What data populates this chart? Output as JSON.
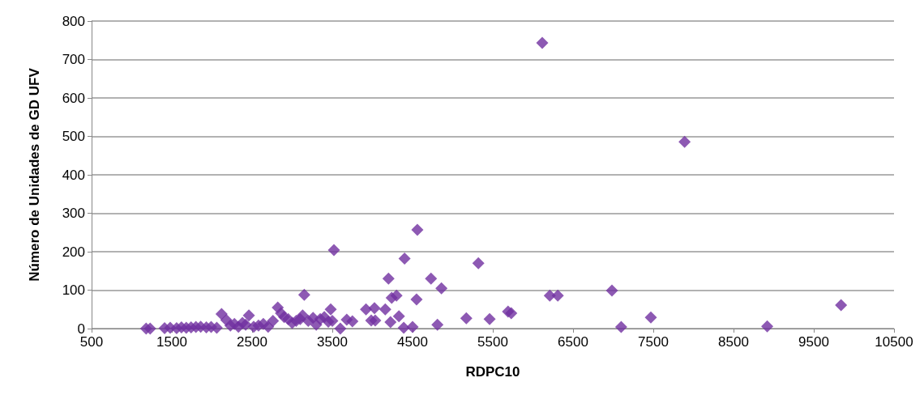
{
  "chart_data": {
    "type": "scatter",
    "xlabel": "RDPC10",
    "ylabel": "Número de Unidades de GD UFV",
    "color": "#7030a0",
    "marker": "diamond",
    "grid": "y",
    "xlim": [
      500,
      10500
    ],
    "xticks": [
      500,
      1500,
      2500,
      3500,
      4500,
      5500,
      6500,
      7500,
      8500,
      9500,
      10500
    ],
    "ylim": [
      0,
      800
    ],
    "yticks": [
      0,
      100,
      200,
      300,
      400,
      500,
      600,
      700,
      800
    ],
    "x": [
      1180,
      1230,
      1410,
      1480,
      1560,
      1620,
      1680,
      1740,
      1800,
      1860,
      1930,
      1990,
      2060,
      2120,
      2180,
      2230,
      2280,
      2330,
      2380,
      2420,
      2460,
      2520,
      2580,
      2640,
      2700,
      2760,
      2820,
      2860,
      2900,
      2950,
      3000,
      3050,
      3100,
      3130,
      3150,
      3200,
      3260,
      3300,
      3350,
      3400,
      3450,
      3480,
      3500,
      3520,
      3600,
      3680,
      3750,
      3920,
      3985,
      4025,
      4035,
      4160,
      4200,
      4225,
      4240,
      4300,
      4330,
      4390,
      4400,
      4500,
      4550,
      4560,
      4730,
      4810,
      4860,
      5170,
      5320,
      5460,
      5690,
      5730,
      6116,
      6210,
      6310,
      6985,
      7100,
      7470,
      7890,
      8920,
      9840
    ],
    "values": [
      0,
      0,
      1,
      2,
      1,
      3,
      2,
      3,
      4,
      5,
      3,
      4,
      2,
      38,
      22,
      8,
      12,
      5,
      15,
      10,
      34,
      5,
      8,
      12,
      5,
      20,
      55,
      40,
      30,
      25,
      15,
      20,
      25,
      34,
      88,
      20,
      28,
      10,
      25,
      30,
      18,
      50,
      20,
      204,
      0,
      23,
      19,
      50,
      21,
      53,
      21,
      50,
      130,
      17,
      80,
      86,
      32,
      2,
      182,
      4,
      76,
      257,
      130,
      10,
      105,
      27,
      170,
      25,
      44,
      40,
      743,
      86,
      86,
      99,
      4,
      29,
      486,
      6,
      61
    ]
  }
}
